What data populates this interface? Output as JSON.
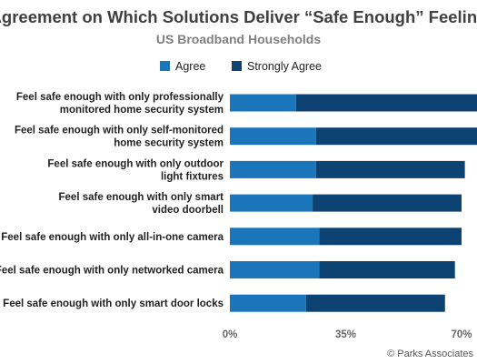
{
  "chart_data": {
    "type": "bar",
    "orientation": "horizontal",
    "stacked": true,
    "title": "Agreement on Which Solutions Deliver “Safe Enough” Feeling",
    "subtitle": "US Broadband Households",
    "categories": [
      [
        "Feel safe enough with only professionally",
        "monitored home security system"
      ],
      [
        "Feel safe enough with only self-monitored",
        "home security system"
      ],
      [
        "Feel safe enough with only outdoor",
        "light fixtures"
      ],
      [
        "Feel safe enough with only smart",
        "video doorbell"
      ],
      [
        "Feel safe enough with only all-in-one camera"
      ],
      [
        "Feel safe enough with only networked camera"
      ],
      [
        "Feel safe enough with only smart door locks"
      ]
    ],
    "series": [
      {
        "name": "Agree",
        "color": "#1b75bb",
        "values": [
          20,
          26,
          26,
          25,
          27,
          27,
          23
        ]
      },
      {
        "name": "Strongly Agree",
        "color": "#0d4373",
        "values": [
          62,
          49,
          45,
          45,
          43,
          41,
          42
        ]
      }
    ],
    "xlim": [
      0,
      70
    ],
    "xticks": [
      0,
      35,
      70
    ],
    "xtick_labels": [
      "0%",
      "35%",
      "70%"
    ],
    "grid": false,
    "legend_position": "top"
  },
  "credit": "© Parks Associates"
}
